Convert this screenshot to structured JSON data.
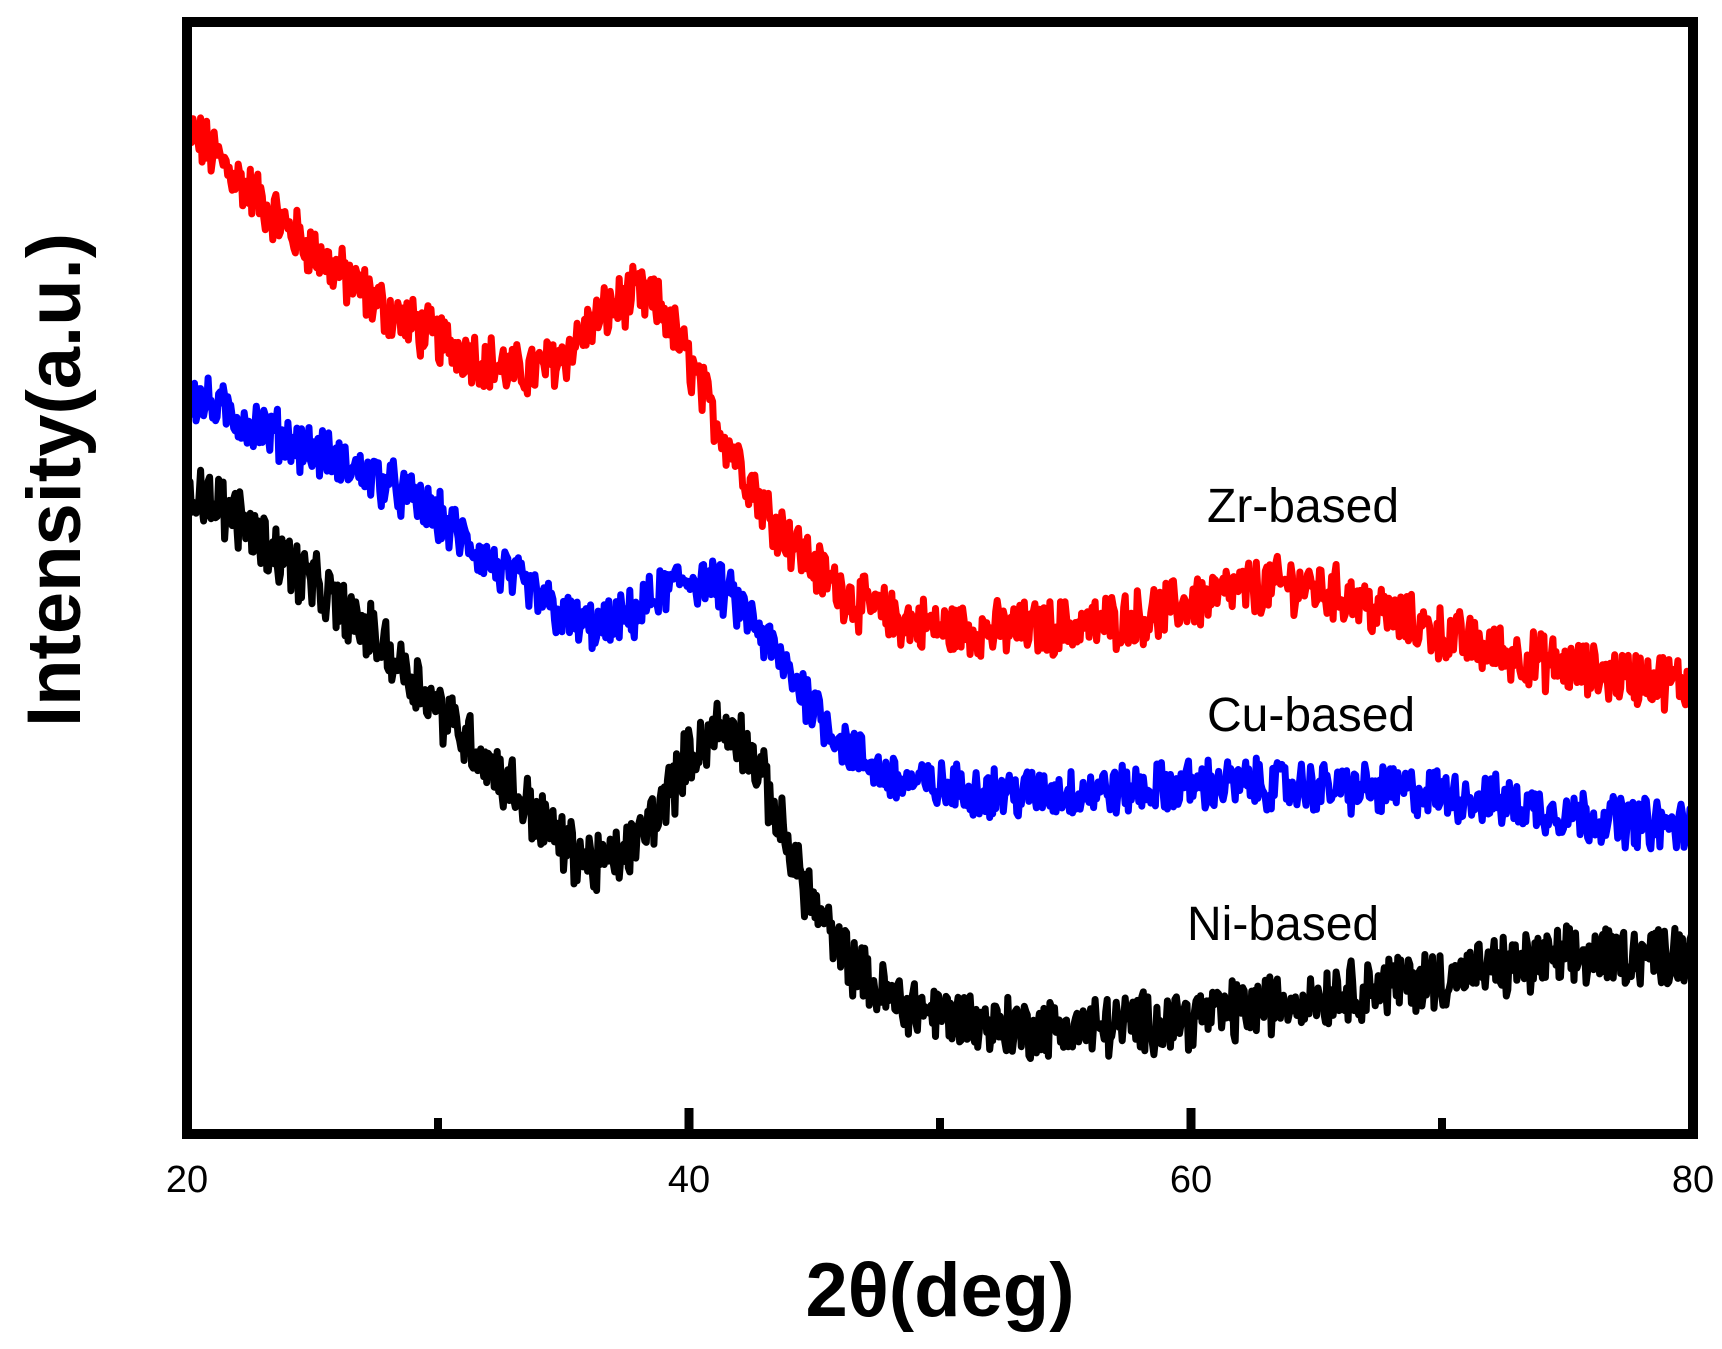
{
  "chart_data": {
    "type": "line",
    "title": "",
    "xlabel": "2θ(deg)",
    "ylabel": "Intensity(a.u.)",
    "xlim": [
      20,
      80
    ],
    "ylim": [
      0,
      100
    ],
    "xticks": [
      20,
      30,
      40,
      50,
      60,
      70,
      80
    ],
    "xtick_labels": [
      "20",
      "40",
      "60",
      "80"
    ],
    "xtick_label_values": [
      20,
      40,
      60,
      80
    ],
    "grid": false,
    "legend": "inline labels",
    "series": [
      {
        "name": "Zr-based",
        "color": "#ff0000",
        "noise": 2.2,
        "x": [
          20,
          22,
          24,
          26,
          28,
          30,
          32,
          33,
          34,
          35,
          36,
          37,
          38,
          39,
          40,
          41,
          42,
          43,
          44,
          45,
          46,
          47,
          48,
          50,
          52,
          54,
          56,
          58,
          60,
          62,
          64,
          66,
          68,
          70,
          72,
          74,
          76,
          78,
          80
        ],
        "values": [
          90.5,
          86,
          81.5,
          77.5,
          74,
          71.5,
          69.5,
          68.5,
          68.8,
          70,
          72.5,
          74.5,
          75.5,
          74,
          69.5,
          64.5,
          60.5,
          56.5,
          53.5,
          51,
          49,
          47.5,
          46.5,
          45.5,
          45.3,
          45.5,
          45.8,
          46.5,
          47.8,
          49,
          49.5,
          48.5,
          46.5,
          45,
          43.5,
          42.5,
          41.5,
          41,
          40.5
        ]
      },
      {
        "name": "Cu-based",
        "color": "#0000ff",
        "noise": 2.0,
        "x": [
          20,
          22,
          24,
          26,
          28,
          30,
          32,
          34,
          35,
          36,
          37,
          38,
          39,
          40,
          41,
          42,
          43,
          44,
          45,
          46,
          47,
          48,
          50,
          52,
          54,
          56,
          58,
          60,
          62,
          64,
          66,
          68,
          70,
          72,
          74,
          76,
          78,
          80
        ],
        "values": [
          66.5,
          64.5,
          62.5,
          60.5,
          58.5,
          55.5,
          51.5,
          48.3,
          46.5,
          45.5,
          45.8,
          47,
          49,
          50,
          49.5,
          47.5,
          44.5,
          41.5,
          38.5,
          35.5,
          33.5,
          32,
          31.2,
          30.8,
          30.6,
          30.8,
          31,
          31.4,
          31.5,
          31.3,
          31.1,
          30.9,
          30.6,
          30,
          29.2,
          28.5,
          28,
          27.5
        ]
      },
      {
        "name": "Ni-based",
        "color": "#000000",
        "noise": 2.4,
        "x": [
          20,
          22,
          24,
          26,
          28,
          30,
          32,
          34,
          35,
          36,
          37,
          38,
          39,
          40,
          41,
          42,
          43,
          44,
          45,
          46,
          47,
          48,
          50,
          52,
          54,
          56,
          58,
          60,
          62,
          64,
          66,
          68,
          70,
          72,
          74,
          76,
          78,
          80
        ],
        "values": [
          58.5,
          55.5,
          51.5,
          47.5,
          43.5,
          38.5,
          33.5,
          28.5,
          26,
          24.5,
          24.5,
          26.5,
          30,
          34,
          36.5,
          36,
          31.5,
          25.5,
          20.5,
          16.5,
          14,
          12.2,
          10.8,
          9.8,
          9.5,
          9.6,
          10,
          10.5,
          11.2,
          12,
          12.8,
          13.5,
          14,
          14.8,
          15.5,
          16,
          16.2,
          16.3
        ]
      }
    ]
  }
}
